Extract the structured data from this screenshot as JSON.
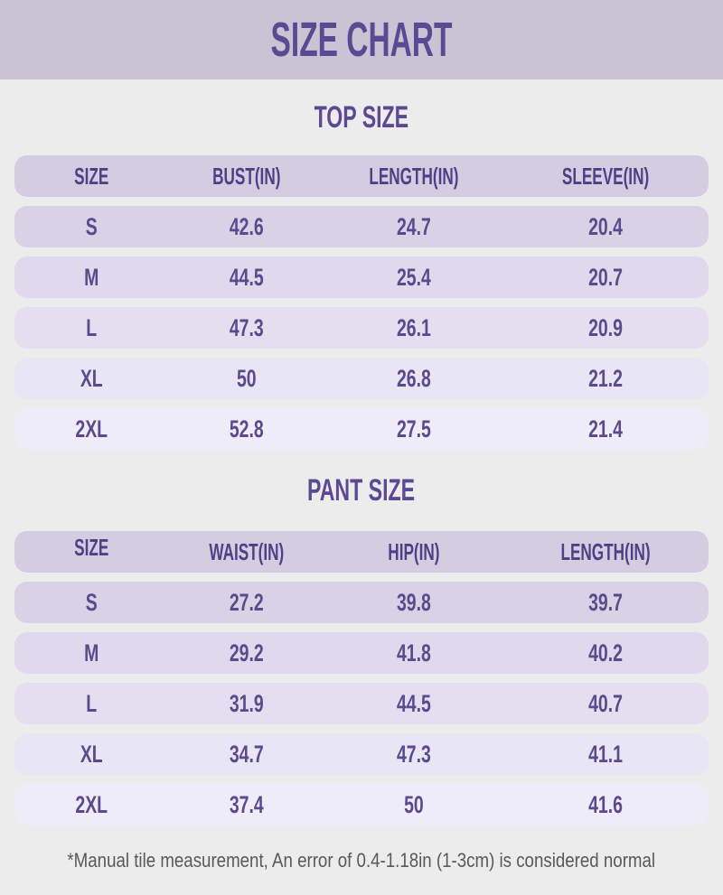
{
  "page": {
    "title": "SIZE CHART",
    "note": "*Manual tile measurement, An error of 0.4-1.18in (1-3cm) is considered normal"
  },
  "style": {
    "page_bg": "#ececec",
    "banner_bg": "#c9c4d3",
    "title_color": "#5a4a93",
    "header_row_bg": "#d3cde2",
    "header_text_color": "#4f3f85",
    "cell_text_color": "#5a4a8c",
    "note_color": "#595959",
    "row_bgs": [
      "#d8d2e6",
      "#ded9ec",
      "#e3def0",
      "#e8e5f4",
      "#efecf9"
    ]
  },
  "top_size": {
    "title": "TOP SIZE",
    "headers": [
      "SIZE",
      "BUST(IN)",
      "LENGTH(IN)",
      "SLEEVE(IN)"
    ],
    "rows": [
      [
        "S",
        "42.6",
        "24.7",
        "20.4"
      ],
      [
        "M",
        "44.5",
        "25.4",
        "20.7"
      ],
      [
        "L",
        "47.3",
        "26.1",
        "20.9"
      ],
      [
        "XL",
        "50",
        "26.8",
        "21.2"
      ],
      [
        "2XL",
        "52.8",
        "27.5",
        "21.4"
      ]
    ]
  },
  "pant_size": {
    "title": "PANT SIZE",
    "headers": [
      "SIZE",
      "WAIST(IN)",
      "HIP(IN)",
      "LENGTH(IN)"
    ],
    "rows": [
      [
        "S",
        "27.2",
        "39.8",
        "39.7"
      ],
      [
        "M",
        "29.2",
        "41.8",
        "40.2"
      ],
      [
        "L",
        "31.9",
        "44.5",
        "40.7"
      ],
      [
        "XL",
        "34.7",
        "47.3",
        "41.1"
      ],
      [
        "2XL",
        "37.4",
        "50",
        "41.6"
      ]
    ]
  },
  "chart_data": [
    {
      "type": "table",
      "title": "TOP SIZE",
      "columns": [
        "SIZE",
        "BUST(IN)",
        "LENGTH(IN)",
        "SLEEVE(IN)"
      ],
      "rows": [
        [
          "S",
          42.6,
          24.7,
          20.4
        ],
        [
          "M",
          44.5,
          25.4,
          20.7
        ],
        [
          "L",
          47.3,
          26.1,
          20.9
        ],
        [
          "XL",
          50,
          26.8,
          21.2
        ],
        [
          "2XL",
          52.8,
          27.5,
          21.4
        ]
      ]
    },
    {
      "type": "table",
      "title": "PANT SIZE",
      "columns": [
        "SIZE",
        "WAIST(IN)",
        "HIP(IN)",
        "LENGTH(IN)"
      ],
      "rows": [
        [
          "S",
          27.2,
          39.8,
          39.7
        ],
        [
          "M",
          29.2,
          41.8,
          40.2
        ],
        [
          "L",
          31.9,
          44.5,
          40.7
        ],
        [
          "XL",
          34.7,
          47.3,
          41.1
        ],
        [
          "2XL",
          37.4,
          50,
          41.6
        ]
      ]
    }
  ]
}
